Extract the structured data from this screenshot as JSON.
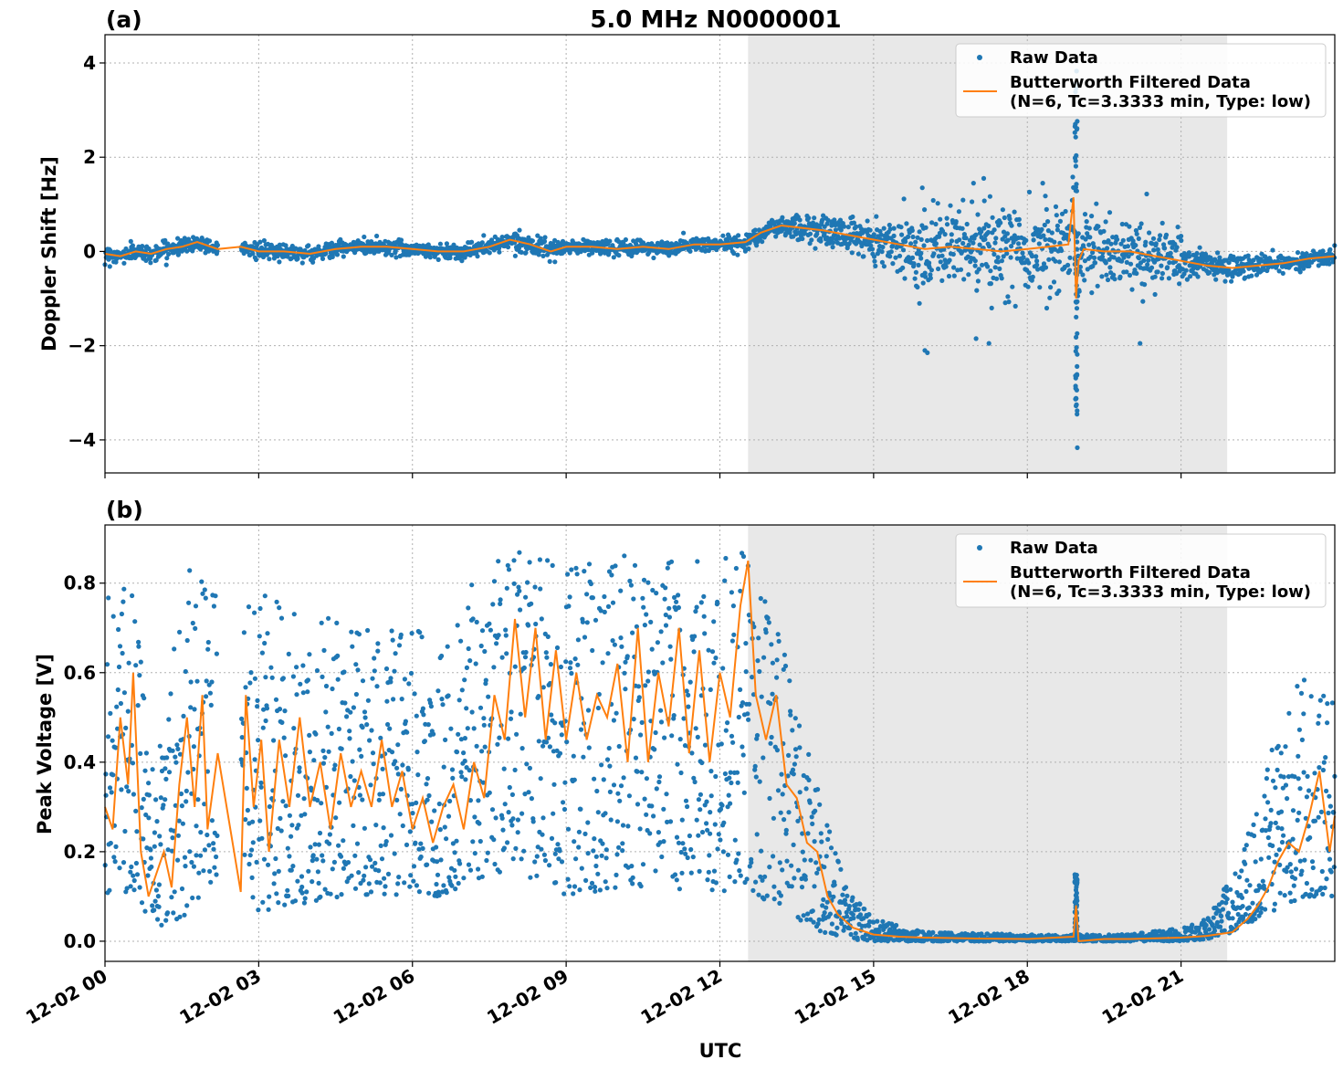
{
  "figure": {
    "title": "5.0 MHz N0000001",
    "xlabel": "UTC",
    "x_ticks": [
      "12-02 00",
      "12-02 03",
      "12-02 06",
      "12-02 09",
      "12-02 12",
      "12-02 15",
      "12-02 18",
      "12-02 21"
    ],
    "shaded_interval_hours": [
      12.55,
      21.9
    ],
    "colors": {
      "raw": "#1f77b4",
      "filtered": "#ff7f0e",
      "shade": "#e8e8e8"
    }
  },
  "chart_data": [
    {
      "type": "scatter",
      "panel_label": "(a)",
      "ylabel": "Doppler Shift [Hz]",
      "xlim_hours": [
        0,
        24
      ],
      "ylim": [
        -4.7,
        4.6
      ],
      "y_ticks": [
        "−4",
        "−2",
        "0",
        "2",
        "4"
      ],
      "y_tick_values": [
        -4,
        -2,
        0,
        2,
        4
      ],
      "grid": true,
      "legend_position": "upper-right",
      "legend": {
        "raw": "Raw Data",
        "filtered_line1": "Butterworth Filtered Data",
        "filtered_line2": "(N=6, Tc=3.3333 min, Type: low)"
      },
      "series": [
        {
          "name": "Butterworth Filtered Data",
          "x_hours": [
            0,
            0.3,
            0.6,
            0.9,
            1.2,
            1.5,
            1.8,
            2.2,
            2.65,
            3.0,
            3.5,
            4.0,
            4.5,
            5.0,
            5.5,
            6.0,
            6.5,
            7.0,
            7.5,
            7.9,
            8.3,
            8.7,
            9.0,
            9.5,
            10.0,
            10.5,
            11.0,
            11.5,
            12.0,
            12.5,
            12.8,
            13.2,
            13.6,
            14.0,
            14.5,
            15.0,
            15.5,
            16.0,
            16.5,
            17.0,
            17.5,
            18.0,
            18.4,
            18.8,
            18.9,
            18.95,
            19.0,
            19.1,
            19.5,
            20.0,
            20.5,
            21.0,
            21.5,
            22.0,
            22.5,
            23.0,
            23.5,
            24.0
          ],
          "y": [
            -0.05,
            -0.1,
            0.0,
            -0.05,
            0.05,
            0.1,
            0.2,
            0.05,
            0.1,
            0.0,
            0.0,
            -0.05,
            0.05,
            0.1,
            0.1,
            0.05,
            0.0,
            0.0,
            0.1,
            0.25,
            0.15,
            0.0,
            0.1,
            0.1,
            0.05,
            0.1,
            0.05,
            0.15,
            0.15,
            0.2,
            0.4,
            0.55,
            0.5,
            0.45,
            0.35,
            0.25,
            0.15,
            0.05,
            0.1,
            0.05,
            0.0,
            0.05,
            0.1,
            0.15,
            1.15,
            -1.0,
            -0.2,
            0.05,
            0.0,
            0.0,
            -0.1,
            -0.2,
            -0.3,
            -0.35,
            -0.3,
            -0.25,
            -0.15,
            -0.1
          ]
        },
        {
          "name": "Raw Data",
          "spread_hours": [
            0,
            12.5,
            13.5,
            15.0,
            16.0,
            17.5,
            19.0,
            20.5,
            21.5,
            22.5,
            24.0
          ],
          "spread_hz": [
            0.15,
            0.15,
            0.25,
            0.35,
            0.7,
            0.85,
            0.8,
            0.6,
            0.3,
            0.2,
            0.15
          ],
          "gap_hours": [
            2.2,
            2.65
          ],
          "spike_hour": 18.95,
          "spike_range": [
            -4.3,
            4.0
          ],
          "outliers": [
            [
              16.0,
              -2.1
            ],
            [
              16.05,
              -2.15
            ],
            [
              17.0,
              -1.85
            ],
            [
              17.25,
              -1.95
            ],
            [
              20.2,
              -1.95
            ],
            [
              17.15,
              1.55
            ],
            [
              16.95,
              1.45
            ],
            [
              15.95,
              1.35
            ],
            [
              18.3,
              1.45
            ]
          ]
        }
      ]
    },
    {
      "type": "scatter",
      "panel_label": "(b)",
      "ylabel": "Peak Voltage [V]",
      "xlim_hours": [
        0,
        24
      ],
      "ylim": [
        -0.045,
        0.93
      ],
      "y_ticks": [
        "0.0",
        "0.2",
        "0.4",
        "0.6",
        "0.8"
      ],
      "y_tick_values": [
        0.0,
        0.2,
        0.4,
        0.6,
        0.8
      ],
      "grid": true,
      "legend_position": "upper-right",
      "legend": {
        "raw": "Raw Data",
        "filtered_line1": "Butterworth Filtered Data",
        "filtered_line2": "(N=6, Tc=3.3333 min, Type: low)"
      },
      "series": [
        {
          "name": "Butterworth Filtered Data",
          "x_hours": [
            0,
            0.15,
            0.3,
            0.45,
            0.55,
            0.7,
            0.85,
            1.0,
            1.15,
            1.3,
            1.45,
            1.6,
            1.75,
            1.9,
            2.0,
            2.2,
            2.65,
            2.75,
            2.9,
            3.05,
            3.2,
            3.4,
            3.6,
            3.8,
            4.0,
            4.2,
            4.4,
            4.6,
            4.8,
            5.0,
            5.2,
            5.4,
            5.6,
            5.8,
            6.0,
            6.2,
            6.4,
            6.6,
            6.8,
            7.0,
            7.2,
            7.4,
            7.6,
            7.8,
            8.0,
            8.2,
            8.4,
            8.6,
            8.8,
            9.0,
            9.2,
            9.4,
            9.6,
            9.8,
            10.0,
            10.2,
            10.4,
            10.6,
            10.8,
            11.0,
            11.2,
            11.4,
            11.6,
            11.8,
            12.0,
            12.2,
            12.4,
            12.55,
            12.7,
            12.9,
            13.1,
            13.3,
            13.5,
            13.7,
            13.9,
            14.1,
            14.3,
            14.6,
            15.0,
            15.5,
            16.0,
            17.0,
            18.0,
            18.9,
            18.95,
            19.0,
            19.5,
            20.0,
            21.0,
            21.5,
            22.0,
            22.3,
            22.5,
            22.7,
            22.9,
            23.1,
            23.3,
            23.5,
            23.7,
            23.9,
            24.0
          ],
          "y": [
            0.3,
            0.25,
            0.5,
            0.35,
            0.6,
            0.2,
            0.1,
            0.15,
            0.2,
            0.12,
            0.35,
            0.5,
            0.3,
            0.55,
            0.25,
            0.42,
            0.11,
            0.55,
            0.3,
            0.45,
            0.2,
            0.45,
            0.3,
            0.5,
            0.3,
            0.4,
            0.25,
            0.42,
            0.3,
            0.38,
            0.3,
            0.45,
            0.3,
            0.38,
            0.25,
            0.32,
            0.22,
            0.3,
            0.35,
            0.25,
            0.4,
            0.32,
            0.55,
            0.45,
            0.72,
            0.5,
            0.7,
            0.45,
            0.65,
            0.45,
            0.6,
            0.45,
            0.55,
            0.5,
            0.62,
            0.4,
            0.7,
            0.4,
            0.6,
            0.48,
            0.7,
            0.42,
            0.65,
            0.4,
            0.6,
            0.5,
            0.75,
            0.85,
            0.55,
            0.45,
            0.55,
            0.35,
            0.32,
            0.22,
            0.2,
            0.1,
            0.06,
            0.03,
            0.015,
            0.01,
            0.008,
            0.006,
            0.005,
            0.01,
            0.08,
            0.0,
            0.005,
            0.005,
            0.008,
            0.012,
            0.02,
            0.05,
            0.08,
            0.12,
            0.18,
            0.22,
            0.2,
            0.28,
            0.38,
            0.2,
            0.28
          ]
        },
        {
          "name": "Raw Data",
          "gap_hours": [
            2.2,
            2.65
          ],
          "spike_hour": 18.95,
          "spike_range": [
            0.0,
            0.15
          ],
          "envelope_hours": [
            0,
            0.5,
            1.0,
            1.5,
            2.2,
            2.65,
            3.5,
            5.0,
            6.5,
            7.5,
            8.0,
            9.0,
            10.0,
            11.0,
            12.0,
            12.5,
            13.0,
            13.5,
            14.0,
            14.5,
            15.0,
            16.0,
            18.0,
            20.0,
            21.0,
            21.5,
            22.0,
            22.5,
            23.0,
            23.5,
            24.0
          ],
          "envelope_low": [
            0.1,
            0.1,
            0.03,
            0.05,
            0.15,
            0.05,
            0.08,
            0.1,
            0.1,
            0.15,
            0.15,
            0.1,
            0.12,
            0.12,
            0.1,
            0.12,
            0.08,
            0.05,
            0.02,
            0.005,
            0.0,
            0.0,
            0.0,
            0.0,
            0.0,
            0.005,
            0.02,
            0.05,
            0.08,
            0.1,
            0.1
          ],
          "envelope_high": [
            0.8,
            0.8,
            0.4,
            0.85,
            0.8,
            0.8,
            0.75,
            0.7,
            0.7,
            0.85,
            0.88,
            0.85,
            0.87,
            0.87,
            0.85,
            0.88,
            0.75,
            0.55,
            0.3,
            0.12,
            0.05,
            0.02,
            0.015,
            0.015,
            0.03,
            0.05,
            0.15,
            0.3,
            0.55,
            0.6,
            0.55
          ]
        }
      ]
    }
  ]
}
